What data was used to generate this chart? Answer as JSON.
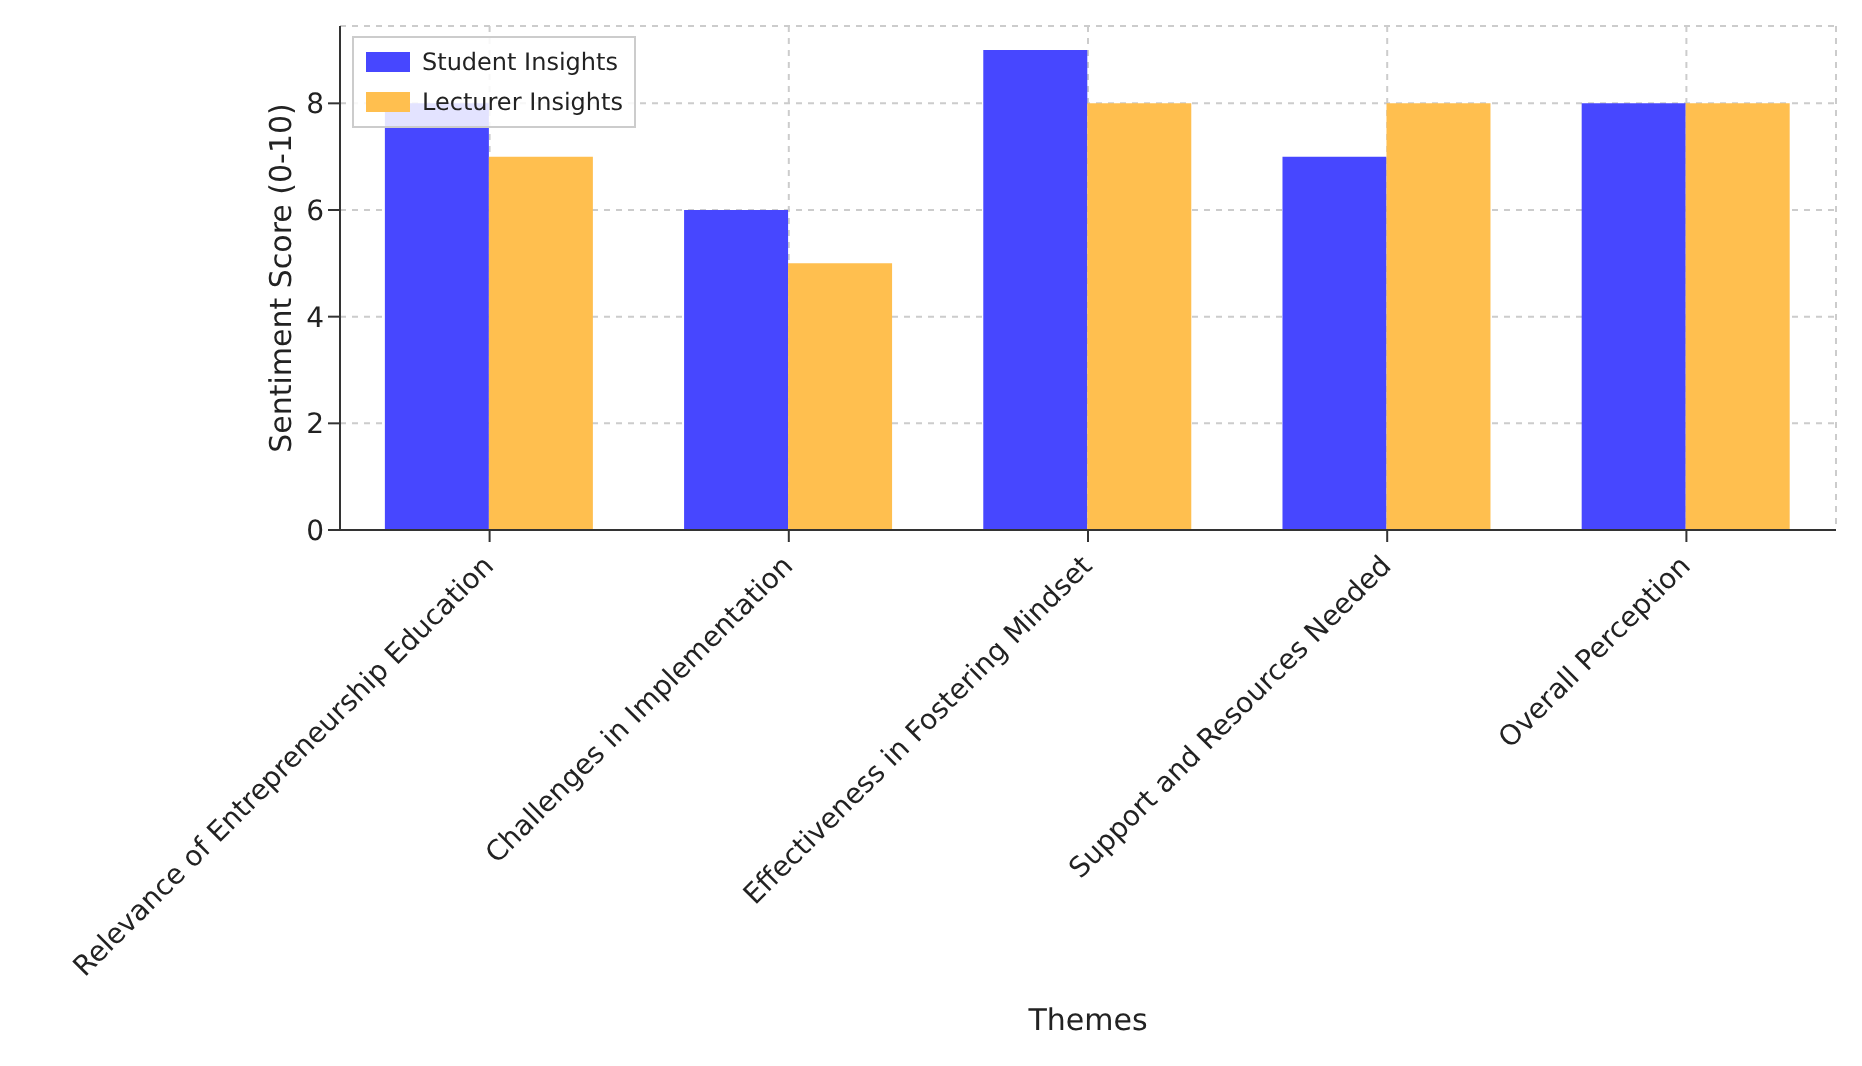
{
  "chart_data": {
    "type": "bar",
    "xlabel": "Themes",
    "ylabel": "Sentiment Score (0-10)",
    "categories": [
      "Relevance of Entrepreneurship Education",
      "Challenges in Implementation",
      "Effectiveness in Fostering Mindset",
      "Support and Resources Needed",
      "Overall Perception"
    ],
    "series": [
      {
        "name": "Student Insights",
        "color": "#4747ff",
        "values": [
          8,
          6,
          9,
          7,
          8
        ]
      },
      {
        "name": "Lecturer Insights",
        "color": "#ffbf4f",
        "values": [
          7,
          5,
          8,
          8,
          8
        ]
      }
    ],
    "ylim": [
      0,
      9.45
    ],
    "yticks": [
      0,
      2,
      4,
      6,
      8
    ],
    "grid": true,
    "legend": "top left"
  }
}
